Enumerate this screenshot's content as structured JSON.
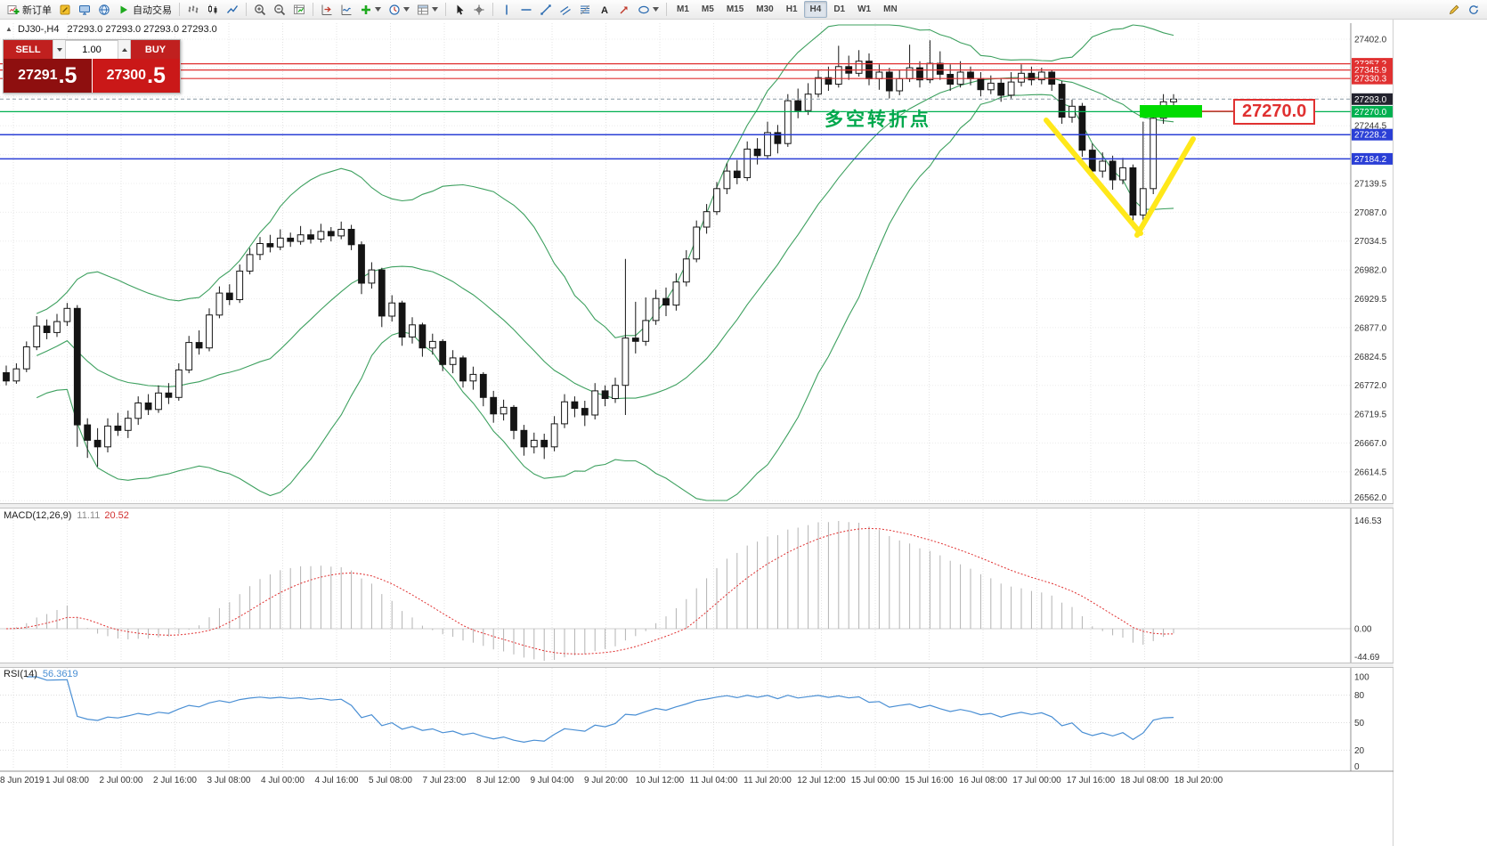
{
  "toolbar": {
    "groups": [
      [
        {
          "name": "new-order-button",
          "icon": "new-order-icon",
          "label": "新订单"
        },
        {
          "name": "metaeditor-button",
          "icon": "metaeditor-icon"
        },
        {
          "name": "terminal-button",
          "icon": "terminal-icon"
        },
        {
          "name": "website-button",
          "icon": "globe-icon"
        },
        {
          "name": "autotrading-button",
          "icon": "autotrading-icon",
          "label": "自动交易"
        }
      ],
      [
        {
          "name": "bars-chart-button",
          "icon": "bars-icon"
        },
        {
          "name": "candle-chart-button",
          "icon": "candles-icon"
        },
        {
          "name": "line-chart-button",
          "icon": "line-chart-icon"
        }
      ],
      [
        {
          "name": "zoom-in-button",
          "icon": "zoom-in-icon"
        },
        {
          "name": "zoom-out-button",
          "icon": "zoom-out-icon"
        },
        {
          "name": "strategy-tester-button",
          "icon": "tester-icon"
        }
      ],
      [
        {
          "name": "chart-shift-button",
          "icon": "chart-shift-icon"
        },
        {
          "name": "auto-scroll-button",
          "icon": "auto-scroll-icon"
        },
        {
          "name": "indicators-button",
          "icon": "indicators-icon",
          "caret": true
        },
        {
          "name": "periods-button",
          "icon": "periods-icon",
          "caret": true
        },
        {
          "name": "templates-button",
          "icon": "templates-icon",
          "caret": true
        }
      ],
      [
        {
          "name": "cursor-button",
          "icon": "cursor-icon"
        },
        {
          "name": "crosshair-button",
          "icon": "crosshair-icon"
        }
      ],
      [
        {
          "name": "vertical-line-button",
          "icon": "vline-icon"
        },
        {
          "name": "horizontal-line-button",
          "icon": "hline-icon"
        },
        {
          "name": "trendline-button",
          "icon": "trendline-icon"
        },
        {
          "name": "channel-button",
          "icon": "channel-icon"
        },
        {
          "name": "fibonacci-button",
          "icon": "fibonacci-icon"
        },
        {
          "name": "text-button",
          "icon": "text-icon"
        },
        {
          "name": "arrows-button",
          "icon": "arrows-icon"
        },
        {
          "name": "shapes-button",
          "icon": "shapes-icon",
          "caret": true
        }
      ]
    ],
    "timeframes": [
      "M1",
      "M5",
      "M15",
      "M30",
      "H1",
      "H4",
      "D1",
      "W1",
      "MN"
    ],
    "active_timeframe": "H4",
    "right_buttons": [
      {
        "name": "edit-button",
        "icon": "pencil-icon"
      },
      {
        "name": "refresh-button",
        "icon": "refresh-icon"
      }
    ]
  },
  "chart_header": {
    "symbol_period": "DJ30-,H4",
    "ohlc": "27293.0 27293.0 27293.0 27293.0"
  },
  "trade_panel": {
    "sell_label": "SELL",
    "buy_label": "BUY",
    "volume": "1.00",
    "sell_price_main": "27291",
    "sell_price_pips": ".5",
    "buy_price_main": "27300",
    "buy_price_pips": ".5"
  },
  "chart_data": {
    "type": "candlestick",
    "symbol": "DJ30-",
    "period": "H4",
    "y_axis": {
      "max": 27402.0,
      "min": 26562.0,
      "step": 52.5,
      "labels": [
        "27402.0",
        "27244.5",
        "27139.5",
        "27087.0",
        "27034.5",
        "26982.0",
        "26929.5",
        "26877.0",
        "26824.5",
        "26772.0",
        "26719.5",
        "26667.0",
        "26614.5",
        "26562.0"
      ]
    },
    "candles": [
      [
        26795,
        26808,
        26772,
        26780
      ],
      [
        26780,
        26812,
        26775,
        26802
      ],
      [
        26802,
        26852,
        26796,
        26842
      ],
      [
        26842,
        26898,
        26836,
        26880
      ],
      [
        26880,
        26892,
        26856,
        26868
      ],
      [
        26868,
        26902,
        26860,
        26888
      ],
      [
        26888,
        26922,
        26880,
        26912
      ],
      [
        26912,
        26918,
        26660,
        26700
      ],
      [
        26700,
        26712,
        26640,
        26672
      ],
      [
        26672,
        26694,
        26624,
        26660
      ],
      [
        26660,
        26712,
        26650,
        26698
      ],
      [
        26698,
        26722,
        26680,
        26690
      ],
      [
        26690,
        26726,
        26676,
        26712
      ],
      [
        26712,
        26752,
        26700,
        26740
      ],
      [
        26740,
        26756,
        26718,
        26728
      ],
      [
        26728,
        26772,
        26722,
        26758
      ],
      [
        26758,
        26776,
        26738,
        26750
      ],
      [
        26750,
        26812,
        26744,
        26800
      ],
      [
        26800,
        26862,
        26794,
        26850
      ],
      [
        26850,
        26872,
        26828,
        26840
      ],
      [
        26840,
        26912,
        26834,
        26900
      ],
      [
        26900,
        26952,
        26894,
        26940
      ],
      [
        26940,
        26956,
        26918,
        26928
      ],
      [
        26928,
        26992,
        26922,
        26980
      ],
      [
        26980,
        27022,
        26974,
        27010
      ],
      [
        27010,
        27042,
        27000,
        27030
      ],
      [
        27030,
        27046,
        27014,
        27024
      ],
      [
        27024,
        27056,
        27018,
        27040
      ],
      [
        27040,
        27050,
        27024,
        27034
      ],
      [
        27034,
        27062,
        27028,
        27046
      ],
      [
        27046,
        27056,
        27030,
        27038
      ],
      [
        27038,
        27066,
        27032,
        27052
      ],
      [
        27052,
        27060,
        27034,
        27044
      ],
      [
        27044,
        27070,
        27038,
        27056
      ],
      [
        27056,
        27064,
        27018,
        27028
      ],
      [
        27028,
        27034,
        26938,
        26958
      ],
      [
        26958,
        26996,
        26948,
        26982
      ],
      [
        26982,
        26986,
        26878,
        26898
      ],
      [
        26898,
        26936,
        26888,
        26922
      ],
      [
        26922,
        26926,
        26844,
        26860
      ],
      [
        26860,
        26896,
        26848,
        26882
      ],
      [
        26882,
        26886,
        26824,
        26840
      ],
      [
        26840,
        26866,
        26828,
        26852
      ],
      [
        26852,
        26856,
        26798,
        26810
      ],
      [
        26810,
        26836,
        26794,
        26822
      ],
      [
        26822,
        26826,
        26768,
        26780
      ],
      [
        26780,
        26806,
        26764,
        26792
      ],
      [
        26792,
        26796,
        26734,
        26750
      ],
      [
        26750,
        26762,
        26704,
        26720
      ],
      [
        26720,
        26746,
        26708,
        26732
      ],
      [
        26732,
        26736,
        26674,
        26690
      ],
      [
        26690,
        26700,
        26644,
        26660
      ],
      [
        26660,
        26686,
        26648,
        26672
      ],
      [
        26672,
        26684,
        26638,
        26660
      ],
      [
        26660,
        26716,
        26652,
        26702
      ],
      [
        26702,
        26756,
        26694,
        26742
      ],
      [
        26742,
        26752,
        26714,
        26730
      ],
      [
        26730,
        26744,
        26698,
        26718
      ],
      [
        26718,
        26776,
        26710,
        26762
      ],
      [
        26762,
        26772,
        26734,
        26748
      ],
      [
        26748,
        26786,
        26740,
        26772
      ],
      [
        26772,
        27002,
        26718,
        26858
      ],
      [
        26858,
        26924,
        26830,
        26852
      ],
      [
        26852,
        26932,
        26844,
        26890
      ],
      [
        26890,
        26946,
        26882,
        26930
      ],
      [
        26930,
        26950,
        26898,
        26918
      ],
      [
        26918,
        26976,
        26908,
        26960
      ],
      [
        26960,
        27018,
        26952,
        27002
      ],
      [
        27002,
        27072,
        26996,
        27060
      ],
      [
        27060,
        27102,
        27048,
        27088
      ],
      [
        27088,
        27142,
        27082,
        27130
      ],
      [
        27130,
        27176,
        27120,
        27162
      ],
      [
        27162,
        27182,
        27138,
        27150
      ],
      [
        27150,
        27216,
        27144,
        27202
      ],
      [
        27202,
        27222,
        27174,
        27190
      ],
      [
        27190,
        27252,
        27184,
        27232
      ],
      [
        27232,
        27246,
        27194,
        27212
      ],
      [
        27212,
        27302,
        27206,
        27290
      ],
      [
        27290,
        27312,
        27258,
        27272
      ],
      [
        27272,
        27322,
        27264,
        27302
      ],
      [
        27302,
        27346,
        27296,
        27332
      ],
      [
        27332,
        27352,
        27308,
        27320
      ],
      [
        27320,
        27390,
        27314,
        27352
      ],
      [
        27352,
        27372,
        27328,
        27340
      ],
      [
        27340,
        27382,
        27334,
        27362
      ],
      [
        27362,
        27376,
        27318,
        27330
      ],
      [
        27330,
        27356,
        27310,
        27342
      ],
      [
        27342,
        27350,
        27294,
        27308
      ],
      [
        27308,
        27346,
        27300,
        27330
      ],
      [
        27330,
        27392,
        27324,
        27350
      ],
      [
        27350,
        27362,
        27314,
        27328
      ],
      [
        27328,
        27400,
        27322,
        27358
      ],
      [
        27358,
        27380,
        27328,
        27338
      ],
      [
        27338,
        27356,
        27308,
        27320
      ],
      [
        27320,
        27362,
        27314,
        27342
      ],
      [
        27342,
        27352,
        27318,
        27330
      ],
      [
        27330,
        27342,
        27298,
        27310
      ],
      [
        27310,
        27336,
        27302,
        27322
      ],
      [
        27322,
        27330,
        27288,
        27300
      ],
      [
        27300,
        27342,
        27294,
        27324
      ],
      [
        27324,
        27356,
        27316,
        27340
      ],
      [
        27340,
        27352,
        27318,
        27328
      ],
      [
        27328,
        27350,
        27320,
        27342
      ],
      [
        27342,
        27346,
        27308,
        27320
      ],
      [
        27320,
        27326,
        27248,
        27260
      ],
      [
        27260,
        27292,
        27250,
        27280
      ],
      [
        27280,
        27286,
        27188,
        27200
      ],
      [
        27200,
        27212,
        27148,
        27162
      ],
      [
        27162,
        27196,
        27150,
        27180
      ],
      [
        27180,
        27190,
        27128,
        27146
      ],
      [
        27146,
        27186,
        27138,
        27168
      ],
      [
        27168,
        27174,
        27058,
        27082
      ],
      [
        27082,
        27252,
        27066,
        27130
      ],
      [
        27130,
        27272,
        27120,
        27258
      ],
      [
        27258,
        27302,
        27248,
        27288
      ],
      [
        27288,
        27302,
        27282,
        27293
      ]
    ],
    "levels": {
      "resistance": [
        27357.2,
        27345.9,
        27330.3
      ],
      "pivot": 27270.0,
      "support": [
        27228.2,
        27184.2
      ],
      "current_price": 27293.0,
      "colors": {
        "resistance": "#e03131",
        "pivot": "#00b050",
        "support": "#2b3fd6",
        "current": "#23232e"
      },
      "tags": [
        {
          "v": 27357.2,
          "t": "27357.2",
          "c": "#e03131"
        },
        {
          "v": 27345.9,
          "t": "27345.9",
          "c": "#e03131"
        },
        {
          "v": 27330.3,
          "t": "27330.3",
          "c": "#e03131"
        },
        {
          "v": 27293.0,
          "t": "27293.0",
          "c": "#23232e"
        },
        {
          "v": 27270.0,
          "t": "27270.0",
          "c": "#00b050"
        },
        {
          "v": 27228.2,
          "t": "27228.2",
          "c": "#2b3fd6"
        },
        {
          "v": 27184.2,
          "t": "27184.2",
          "c": "#2b3fd6"
        }
      ]
    },
    "macd": {
      "label": "MACD(12,26,9)",
      "value1": "11.11",
      "value2": "20.52",
      "scale": [
        "146.53",
        "0.00",
        "-44.69"
      ]
    },
    "rsi": {
      "label": "RSI(14)",
      "value": "56.3619",
      "scale": [
        "100",
        "80",
        "50",
        "20",
        "0"
      ]
    },
    "time_labels": [
      "8 Jun 2019",
      "1 Jul 08:00",
      "2 Jul 00:00",
      "2 Jul 16:00",
      "3 Jul 08:00",
      "4 Jul 00:00",
      "4 Jul 16:00",
      "5 Jul 08:00",
      "7 Jul 23:00",
      "8 Jul 12:00",
      "9 Jul 04:00",
      "9 Jul 20:00",
      "10 Jul 12:00",
      "11 Jul 04:00",
      "11 Jul 20:00",
      "12 Jul 12:00",
      "15 Jul 00:00",
      "15 Jul 16:00",
      "16 Jul 08:00",
      "17 Jul 00:00",
      "17 Jul 16:00",
      "18 Jul 08:00",
      "18 Jul 20:00"
    ],
    "annotations": {
      "note_text": "多空转折点",
      "callout_text": "27270.0",
      "yellow_lines": [
        [
          1175,
          135,
          1281,
          262
        ],
        [
          1277,
          264,
          1340,
          156
        ]
      ],
      "green_box": [
        1280,
        118,
        70,
        14
      ],
      "callout_line": [
        1350,
        125,
        1385,
        125
      ],
      "colors": {
        "yellow": "#ffe81a",
        "green_box": "#00dc00",
        "callout": "#e03131",
        "note": "#00a84c"
      }
    }
  }
}
